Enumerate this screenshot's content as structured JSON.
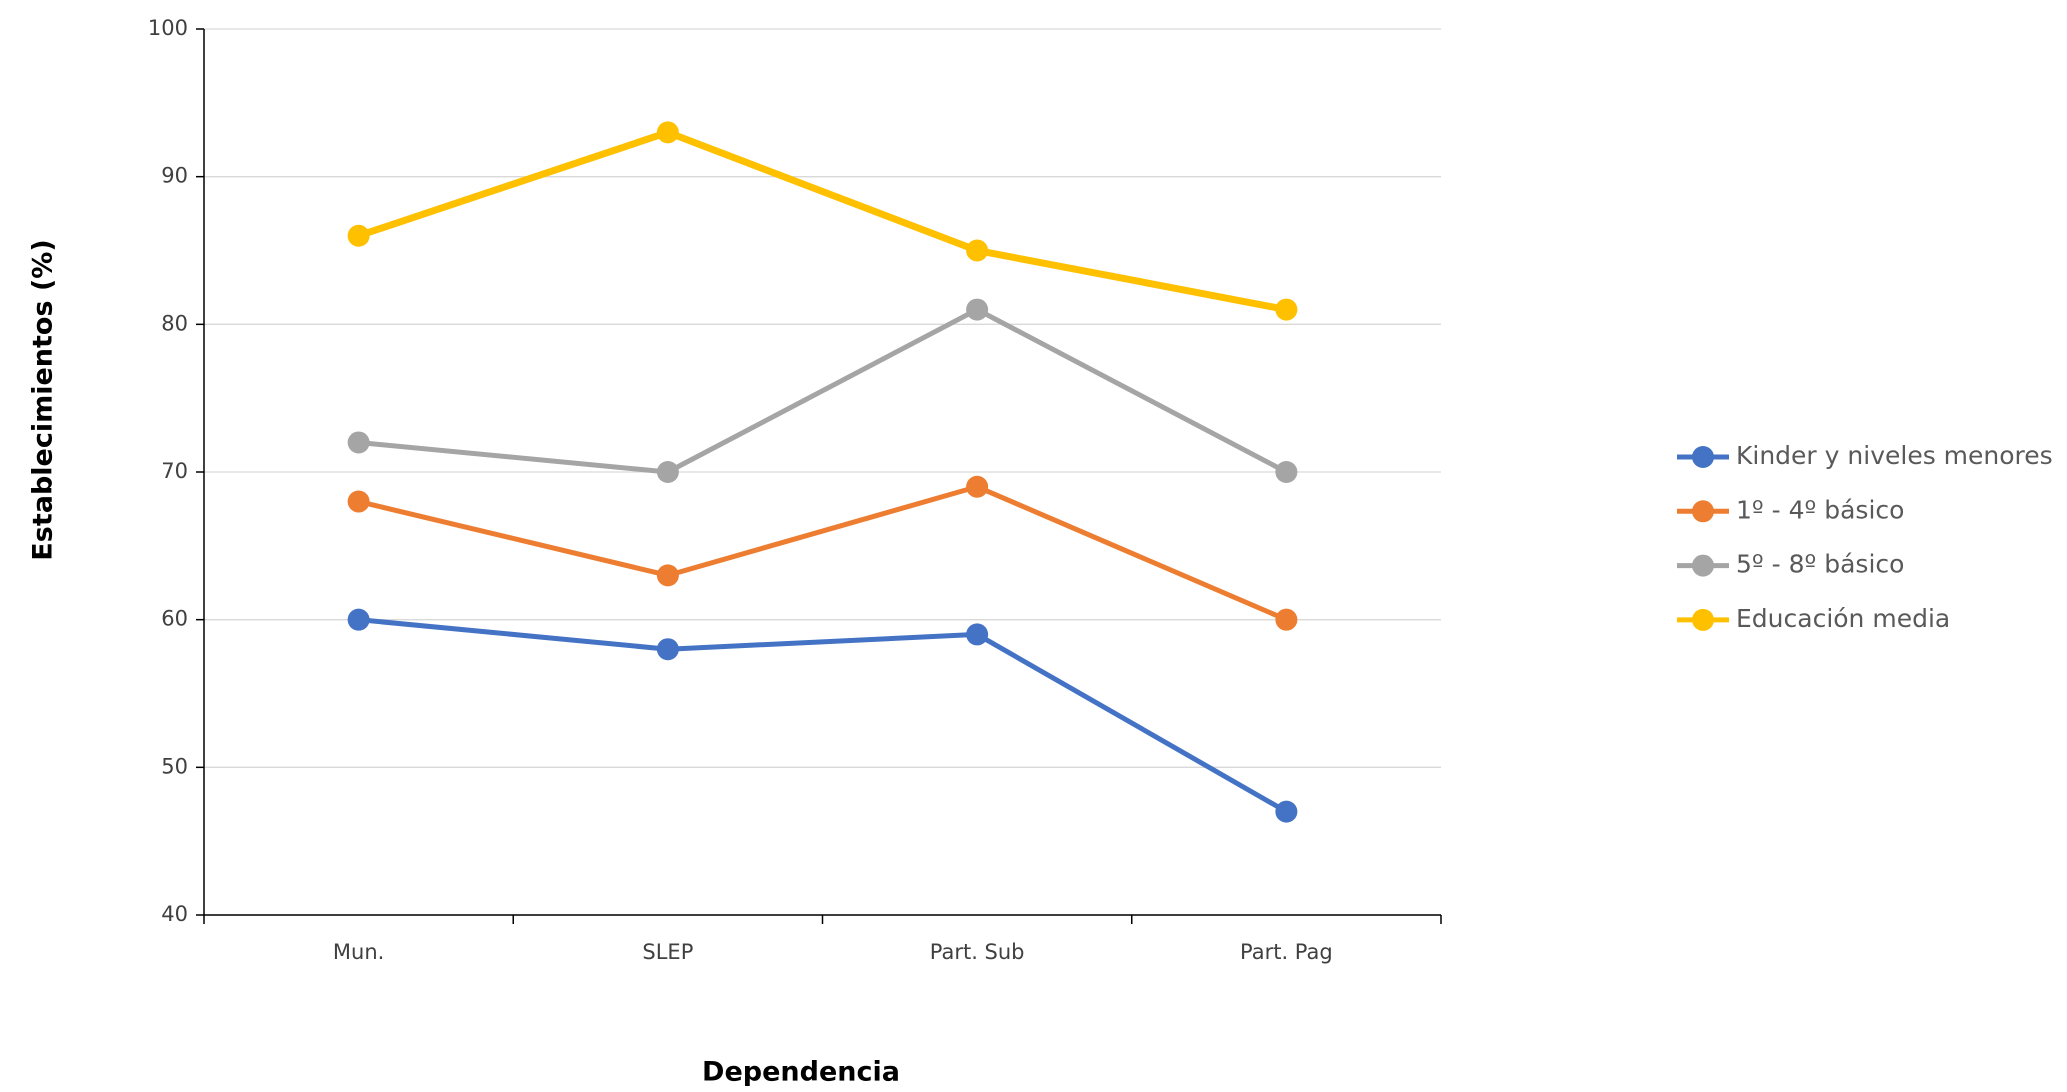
{
  "chart_data": {
    "type": "line",
    "x_label": "Dependencia",
    "y_label": "Establecimientos (%)",
    "categories": [
      "Mun.",
      "SLEP",
      "Part. Sub",
      "Part. Pag"
    ],
    "series": [
      {
        "name": "Kinder y niveles menores",
        "color": "#4472c4",
        "values": [
          60,
          58,
          59,
          47
        ]
      },
      {
        "name": "1º - 4º básico",
        "color": "#ed7d31",
        "values": [
          68,
          63,
          69,
          60
        ]
      },
      {
        "name": "5º - 8º básico",
        "color": "#a5a5a5",
        "values": [
          72,
          70,
          81,
          70
        ]
      },
      {
        "name": "Educación media",
        "color": "#ffc000",
        "values": [
          86,
          93,
          85,
          81
        ]
      }
    ],
    "ylim": [
      40,
      100
    ],
    "yticks": [
      40,
      50,
      60,
      70,
      80,
      90,
      100
    ],
    "grid": true,
    "legend": "right"
  }
}
